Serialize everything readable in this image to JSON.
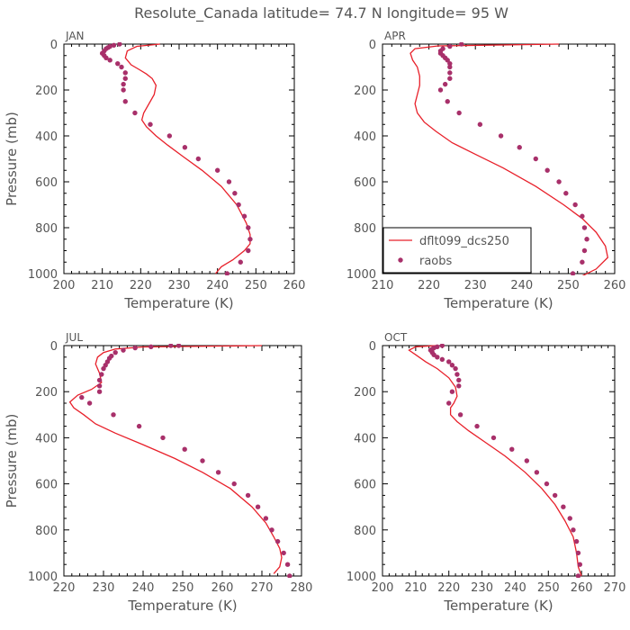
{
  "figure": {
    "title": "Resolute_Canada   latitude= 74.7 N longitude= 95 W"
  },
  "colors": {
    "model_line": "#e8202a",
    "obs_marker": "#a8306a",
    "axis": "#000000",
    "text": "#555555"
  },
  "chart_data": [
    {
      "type": "scatter",
      "title": "JAN",
      "xlabel": "Temperature (K)",
      "ylabel": "Pressure (mb)",
      "xlim": [
        200,
        260
      ],
      "ylim": [
        1000,
        0
      ],
      "xticks": [
        200,
        210,
        220,
        230,
        240,
        250,
        260
      ],
      "yticks": [
        0,
        200,
        400,
        600,
        800,
        1000
      ],
      "legend": null,
      "series": [
        {
          "kind": "line",
          "x": [
            239.5,
            241,
            244,
            247,
            248.5,
            248.5,
            247.5,
            245,
            241,
            236,
            231,
            227,
            224,
            221.5,
            220.3,
            220.8,
            223.5,
            224,
            223,
            221.5,
            219.5,
            217.5,
            216,
            216.5,
            219,
            225
          ],
          "y": [
            1000,
            970,
            940,
            900,
            870,
            830,
            780,
            700,
            620,
            550,
            490,
            440,
            400,
            360,
            330,
            300,
            220,
            180,
            150,
            130,
            110,
            90,
            60,
            30,
            10,
            0
          ]
        },
        {
          "kind": "scatter",
          "x": [
            242.5,
            246,
            248,
            248.5,
            248,
            247,
            245.5,
            244.5,
            243,
            240,
            235,
            231.5,
            227.5,
            222.5,
            218.5,
            216,
            215.5,
            215.5,
            216,
            216,
            215,
            214,
            212,
            211,
            210.5,
            210,
            210.5,
            211,
            211.5,
            212,
            213,
            214.5
          ],
          "y": [
            1000,
            950,
            900,
            850,
            800,
            750,
            700,
            650,
            600,
            550,
            500,
            450,
            400,
            350,
            300,
            250,
            200,
            175,
            150,
            125,
            100,
            85,
            70,
            60,
            50,
            40,
            30,
            20,
            15,
            10,
            5,
            0
          ]
        }
      ]
    },
    {
      "type": "scatter",
      "title": "APR",
      "xlabel": "Temperature (K)",
      "ylabel": "",
      "xlim": [
        210,
        260
      ],
      "ylim": [
        1000,
        0
      ],
      "xticks": [
        210,
        220,
        230,
        240,
        250,
        260
      ],
      "yticks": [
        0,
        200,
        400,
        600,
        800,
        1000
      ],
      "legend": {
        "position": "bottom-left",
        "entries": [
          {
            "label": "dflt099_dcs250",
            "kind": "line"
          },
          {
            "label": "raobs",
            "kind": "scatter"
          }
        ]
      },
      "series": [
        {
          "kind": "line",
          "x": [
            253,
            256,
            258.5,
            258,
            256,
            253,
            249,
            243,
            236,
            230,
            225,
            221.5,
            219,
            217.5,
            217,
            217.5,
            218,
            218,
            217.5,
            216.5,
            216,
            217,
            222,
            248
          ],
          "y": [
            1010,
            980,
            930,
            880,
            820,
            760,
            700,
            620,
            540,
            480,
            430,
            380,
            340,
            300,
            260,
            220,
            180,
            140,
            100,
            70,
            40,
            20,
            8,
            0
          ]
        },
        {
          "kind": "scatter",
          "x": [
            251,
            253,
            253.5,
            254,
            253.5,
            253,
            251.5,
            249.5,
            248,
            245.5,
            243,
            239.5,
            235.5,
            231,
            226.5,
            224,
            222.5,
            223.5,
            224.5,
            224.5,
            224.5,
            224.5,
            224,
            223.5,
            223,
            222.5,
            222.5,
            223,
            224.5,
            227
          ],
          "y": [
            1000,
            950,
            900,
            850,
            800,
            750,
            700,
            650,
            600,
            550,
            500,
            450,
            400,
            350,
            300,
            250,
            200,
            175,
            150,
            125,
            100,
            85,
            70,
            60,
            50,
            40,
            30,
            20,
            10,
            0
          ]
        }
      ]
    },
    {
      "type": "scatter",
      "title": "JUL",
      "xlabel": "Temperature (K)",
      "ylabel": "Pressure (mb)",
      "xlim": [
        220,
        280
      ],
      "ylim": [
        1000,
        0
      ],
      "xticks": [
        220,
        230,
        240,
        250,
        260,
        270,
        280
      ],
      "yticks": [
        0,
        200,
        400,
        600,
        800,
        1000
      ],
      "legend": null,
      "series": [
        {
          "kind": "line",
          "x": [
            273,
            274.5,
            275,
            274.5,
            273,
            271,
            267.5,
            262,
            255,
            248,
            240,
            233,
            228,
            225,
            222.5,
            221.5,
            223.5,
            227,
            229.5,
            229,
            228,
            228.5,
            230,
            233,
            240,
            270
          ],
          "y": [
            990,
            960,
            920,
            880,
            830,
            770,
            700,
            620,
            550,
            490,
            430,
            380,
            340,
            300,
            270,
            245,
            215,
            190,
            160,
            120,
            80,
            50,
            30,
            15,
            6,
            0
          ]
        },
        {
          "kind": "scatter",
          "x": [
            277,
            276.5,
            275.5,
            274,
            272.5,
            271,
            269,
            266.5,
            263,
            259,
            255,
            250.5,
            245,
            239,
            232.5,
            226.5,
            224.5,
            229,
            229,
            229,
            229.5,
            230,
            230.5,
            231,
            231.5,
            232,
            233,
            235,
            238,
            242,
            247,
            249
          ],
          "y": [
            1000,
            950,
            900,
            850,
            800,
            750,
            700,
            650,
            600,
            550,
            500,
            450,
            400,
            350,
            300,
            250,
            225,
            200,
            175,
            150,
            125,
            100,
            85,
            70,
            55,
            45,
            30,
            20,
            10,
            5,
            0,
            0
          ]
        }
      ]
    },
    {
      "type": "scatter",
      "title": "OCT",
      "xlabel": "Temperature (K)",
      "ylabel": "",
      "xlim": [
        200,
        270
      ],
      "ylim": [
        1000,
        0
      ],
      "xticks": [
        200,
        210,
        220,
        230,
        240,
        250,
        260,
        270
      ],
      "yticks": [
        0,
        200,
        400,
        600,
        800,
        1000
      ],
      "legend": null,
      "series": [
        {
          "kind": "line",
          "x": [
            260,
            259,
            258.5,
            257.5,
            255,
            252,
            248,
            243,
            237,
            231,
            226,
            222.5,
            220.5,
            220.5,
            221.5,
            222.5,
            222,
            220,
            216.5,
            213,
            210,
            208,
            210,
            216
          ],
          "y": [
            1000,
            960,
            900,
            830,
            760,
            690,
            620,
            550,
            480,
            420,
            370,
            330,
            300,
            270,
            250,
            220,
            180,
            140,
            100,
            70,
            40,
            20,
            5,
            0
          ]
        },
        {
          "kind": "scatter",
          "x": [
            259,
            259.5,
            259,
            258.5,
            257.5,
            256.5,
            254.5,
            252,
            249.5,
            246.5,
            243.5,
            239,
            233.5,
            228.5,
            223.5,
            220,
            221,
            223,
            223,
            222.5,
            222,
            221,
            220,
            218,
            216.5,
            215.5,
            215,
            214.5,
            215,
            215.5,
            216.5,
            218
          ],
          "y": [
            1000,
            950,
            900,
            850,
            800,
            750,
            700,
            650,
            600,
            550,
            500,
            450,
            400,
            350,
            300,
            250,
            200,
            175,
            150,
            125,
            100,
            85,
            70,
            60,
            50,
            40,
            30,
            20,
            15,
            10,
            5,
            0
          ]
        }
      ]
    }
  ]
}
